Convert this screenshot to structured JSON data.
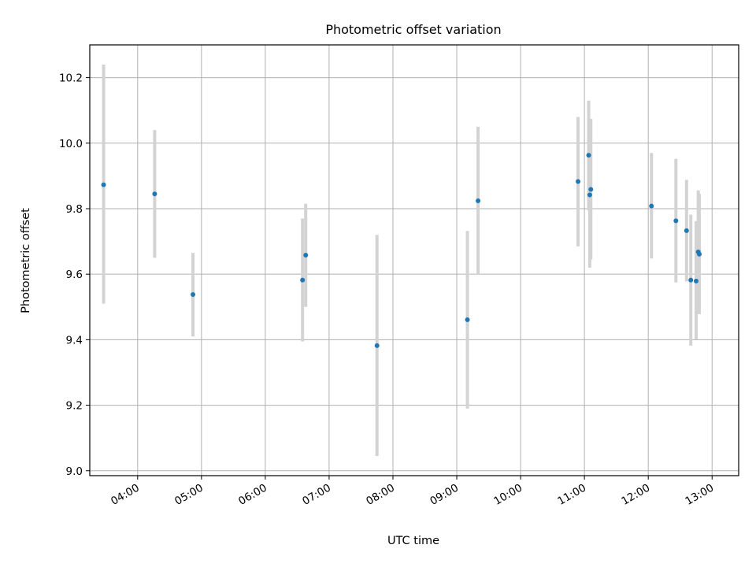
{
  "chart_data": {
    "type": "scatter",
    "title": "Photometric offset variation",
    "xlabel": "UTC time",
    "ylabel": "Photometric offset",
    "xlim": [
      "03:15",
      "13:25"
    ],
    "ylim": [
      8.985,
      10.3
    ],
    "grid": true,
    "x_ticks": [
      "04:00",
      "05:00",
      "06:00",
      "07:00",
      "08:00",
      "09:00",
      "10:00",
      "11:00",
      "12:00",
      "13:00"
    ],
    "y_ticks": [
      "9.0",
      "9.2",
      "9.4",
      "9.6",
      "9.8",
      "10.0",
      "10.2"
    ],
    "point_color": "#1f77b4",
    "errorbar_color": "#d3d3d3",
    "points": [
      {
        "x": "03:28",
        "y": 9.873,
        "err_low": 9.51,
        "err_high": 10.24
      },
      {
        "x": "04:16",
        "y": 9.845,
        "err_low": 9.65,
        "err_high": 10.04
      },
      {
        "x": "04:52",
        "y": 9.538,
        "err_low": 9.41,
        "err_high": 9.665
      },
      {
        "x": "06:35",
        "y": 9.582,
        "err_low": 9.395,
        "err_high": 9.77
      },
      {
        "x": "06:38",
        "y": 9.658,
        "err_low": 9.5,
        "err_high": 9.815
      },
      {
        "x": "07:45",
        "y": 9.382,
        "err_low": 9.045,
        "err_high": 9.72
      },
      {
        "x": "09:10",
        "y": 9.461,
        "err_low": 9.19,
        "err_high": 9.732
      },
      {
        "x": "09:20",
        "y": 9.824,
        "err_low": 9.6,
        "err_high": 10.05
      },
      {
        "x": "10:54",
        "y": 9.883,
        "err_low": 9.685,
        "err_high": 10.08
      },
      {
        "x": "11:04",
        "y": 9.963,
        "err_low": 9.795,
        "err_high": 10.13
      },
      {
        "x": "11:05",
        "y": 9.842,
        "err_low": 9.62,
        "err_high": 10.065
      },
      {
        "x": "11:06",
        "y": 9.859,
        "err_low": 9.645,
        "err_high": 10.074
      },
      {
        "x": "12:03",
        "y": 9.808,
        "err_low": 9.648,
        "err_high": 9.97
      },
      {
        "x": "12:26",
        "y": 9.763,
        "err_low": 9.575,
        "err_high": 9.952
      },
      {
        "x": "12:36",
        "y": 9.733,
        "err_low": 9.578,
        "err_high": 9.888
      },
      {
        "x": "12:40",
        "y": 9.582,
        "err_low": 9.382,
        "err_high": 9.782
      },
      {
        "x": "12:45",
        "y": 9.579,
        "err_low": 9.401,
        "err_high": 9.762
      },
      {
        "x": "12:47",
        "y": 9.668,
        "err_low": 9.48,
        "err_high": 9.856
      },
      {
        "x": "12:48",
        "y": 9.661,
        "err_low": 9.478,
        "err_high": 9.845
      }
    ]
  }
}
